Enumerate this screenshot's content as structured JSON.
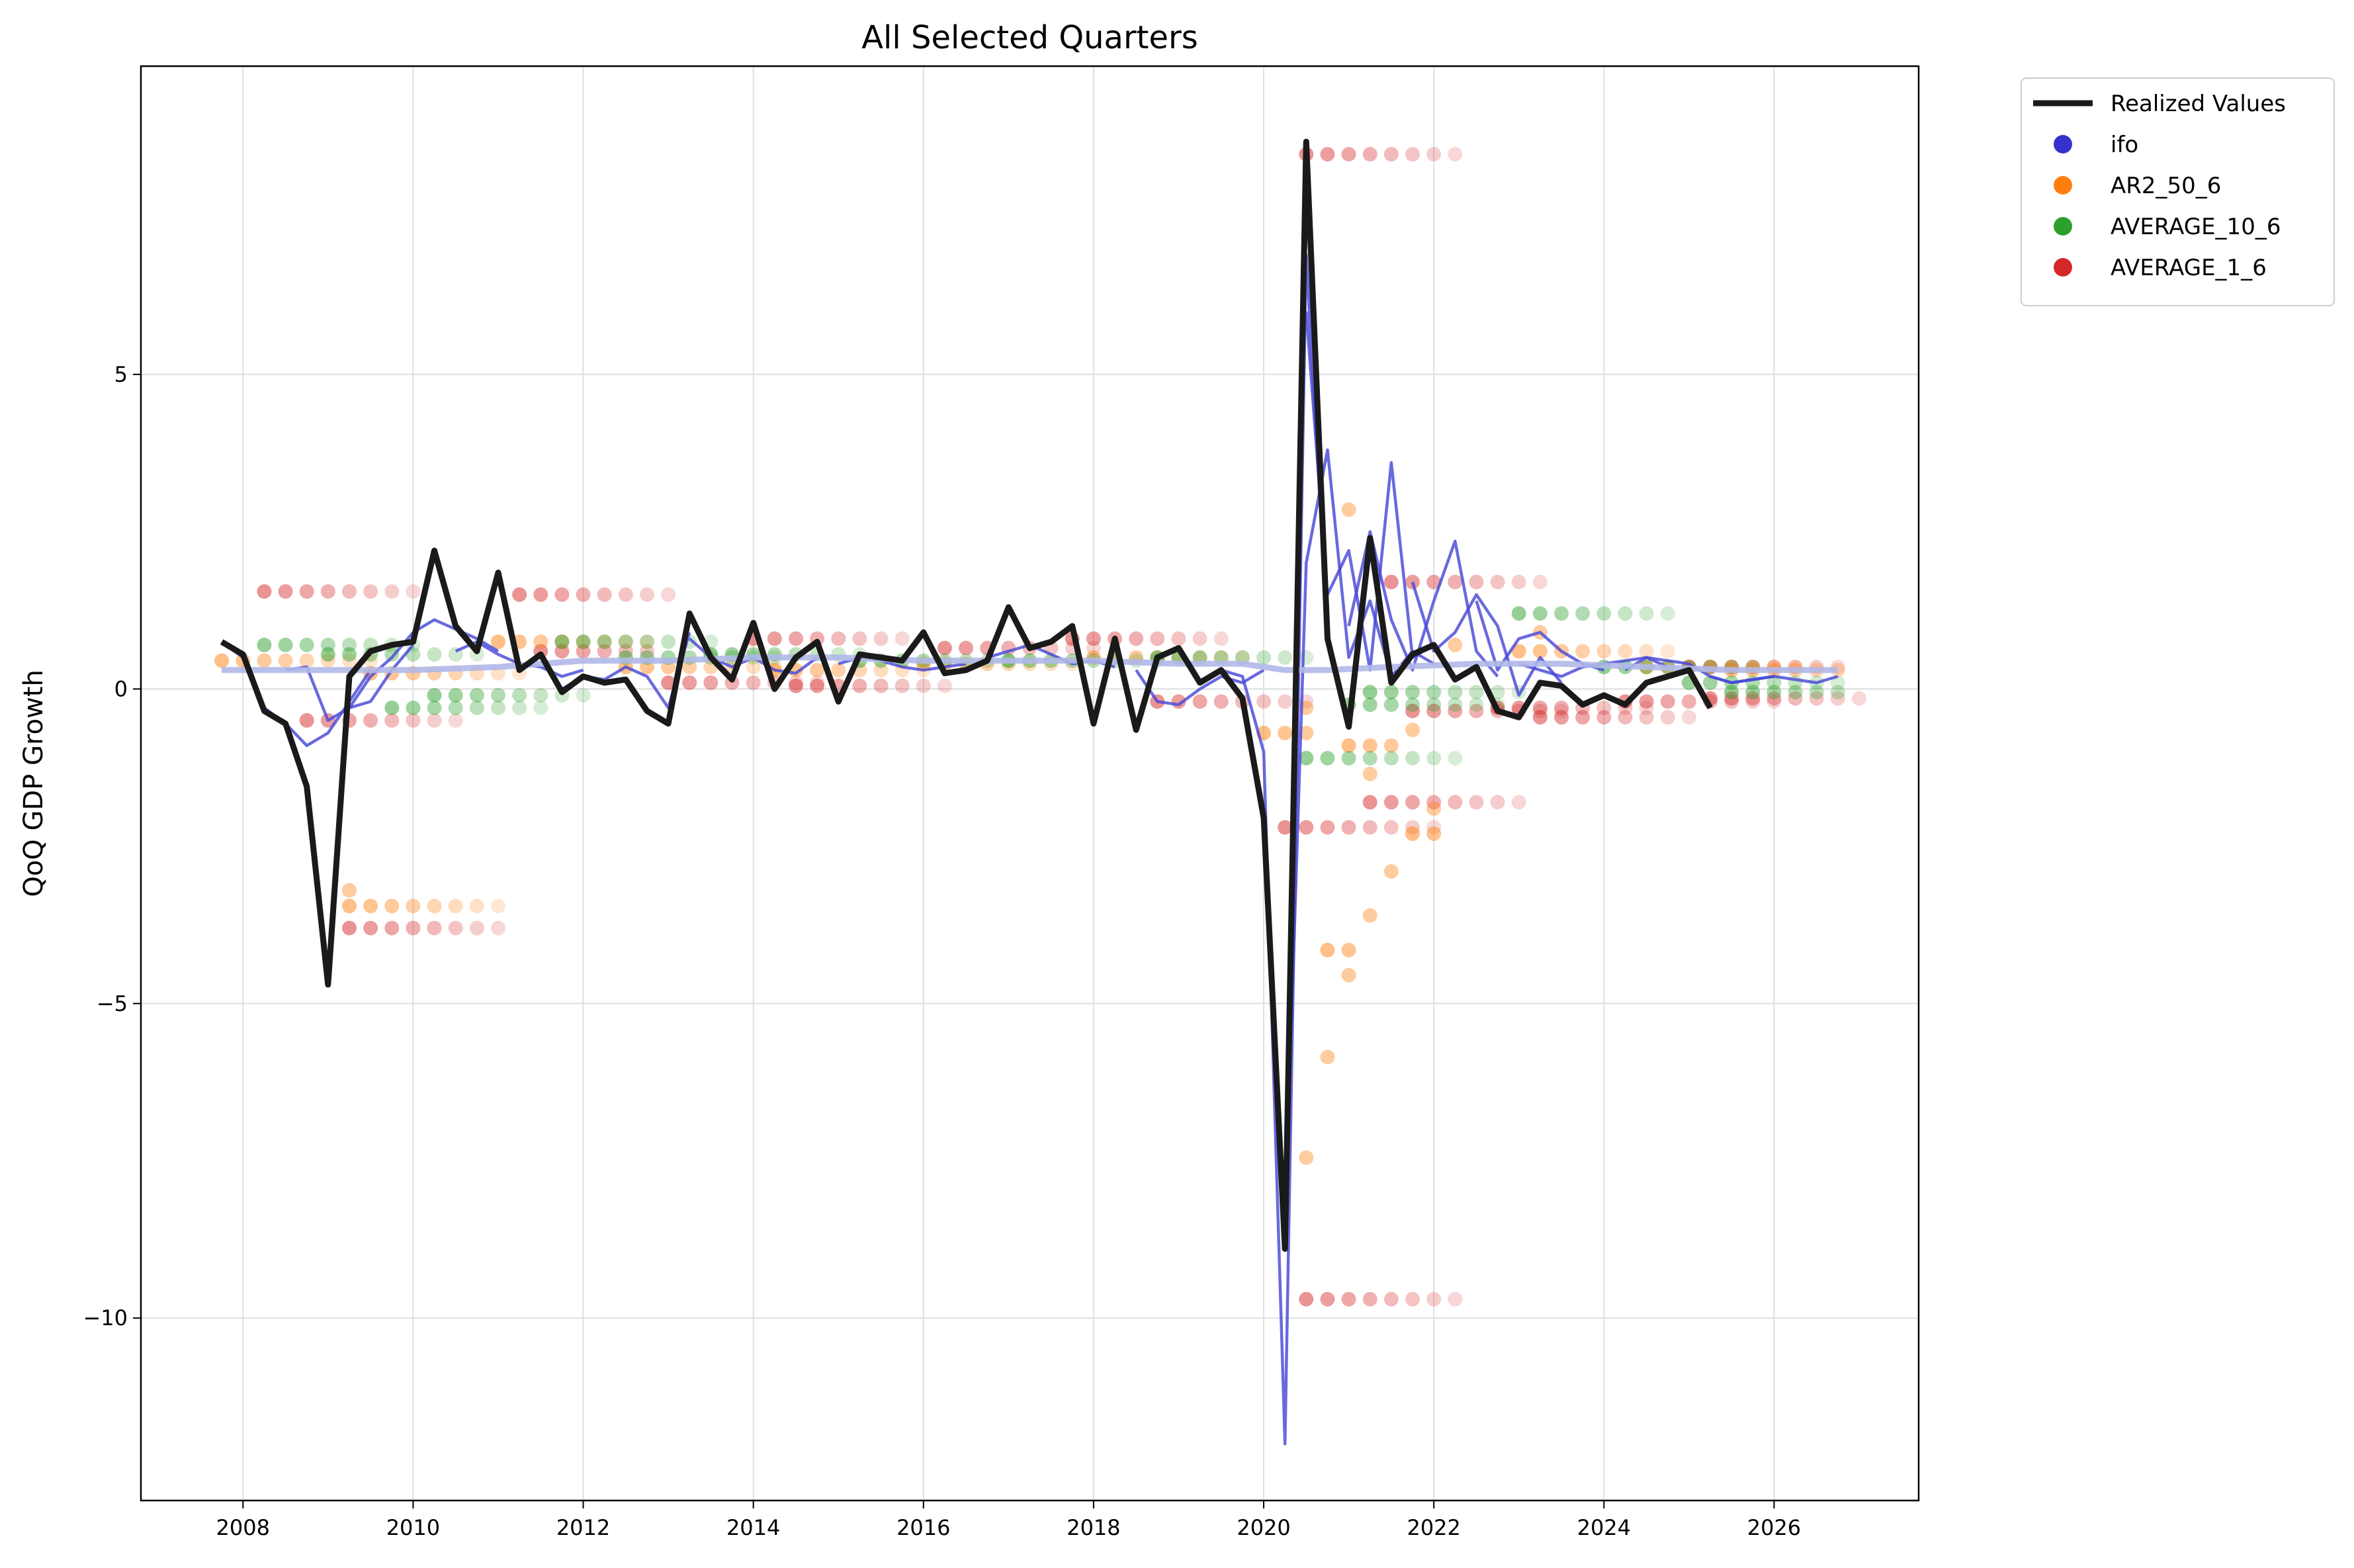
{
  "chart_data": {
    "type": "line",
    "title": "All Selected Quarters",
    "xlabel": "",
    "ylabel": "QoQ GDP Growth",
    "xlim": [
      2006.8,
      2027.7
    ],
    "ylim": [
      -12.9,
      9.9
    ],
    "x_ticks": [
      2008,
      2010,
      2012,
      2014,
      2016,
      2018,
      2020,
      2022,
      2024,
      2026
    ],
    "x_tick_labels": [
      "2008",
      "2010",
      "2012",
      "2014",
      "2016",
      "2018",
      "2020",
      "2022",
      "2024",
      "2026"
    ],
    "y_ticks": [
      5,
      0,
      -5,
      -10
    ],
    "y_tick_labels": [
      "5",
      "0",
      "−5",
      "−10"
    ],
    "grid": true,
    "legend_position": "outside-top-right",
    "legend": [
      {
        "label": "Realized Values",
        "kind": "line",
        "color": "#1a1a1a"
      },
      {
        "label": "ifo",
        "kind": "dot",
        "color": "#3333cc"
      },
      {
        "label": "AR2_50_6",
        "kind": "dot",
        "color": "#ff7f0e"
      },
      {
        "label": "AVERAGE_10_6",
        "kind": "dot",
        "color": "#2ca02c"
      },
      {
        "label": "AVERAGE_1_6",
        "kind": "dot",
        "color": "#d62728"
      }
    ],
    "realized": {
      "name": "Realized Values",
      "color": "#1a1a1a",
      "x": [
        2007.75,
        2008.0,
        2008.25,
        2008.5,
        2008.75,
        2009.0,
        2009.25,
        2009.5,
        2009.75,
        2010.0,
        2010.25,
        2010.5,
        2010.75,
        2011.0,
        2011.25,
        2011.5,
        2011.75,
        2012.0,
        2012.25,
        2012.5,
        2012.75,
        2013.0,
        2013.25,
        2013.5,
        2013.75,
        2014.0,
        2014.25,
        2014.5,
        2014.75,
        2015.0,
        2015.25,
        2015.5,
        2015.75,
        2016.0,
        2016.25,
        2016.5,
        2016.75,
        2017.0,
        2017.25,
        2017.5,
        2017.75,
        2018.0,
        2018.25,
        2018.5,
        2018.75,
        2019.0,
        2019.25,
        2019.5,
        2019.75,
        2020.0,
        2020.25,
        2020.5,
        2020.75,
        2021.0,
        2021.25,
        2021.5,
        2021.75,
        2022.0,
        2022.25,
        2022.5,
        2022.75,
        2023.0,
        2023.25,
        2023.5,
        2023.75,
        2024.0,
        2024.25,
        2024.5,
        2024.75,
        2025.0,
        2025.25
      ],
      "y": [
        0.75,
        0.55,
        -0.35,
        -0.55,
        -1.55,
        -4.7,
        0.2,
        0.6,
        0.7,
        0.75,
        2.2,
        1.0,
        0.6,
        1.85,
        0.3,
        0.55,
        -0.05,
        0.2,
        0.1,
        0.15,
        -0.35,
        -0.55,
        1.2,
        0.5,
        0.15,
        1.05,
        0.0,
        0.5,
        0.75,
        -0.2,
        0.55,
        0.5,
        0.45,
        0.9,
        0.25,
        0.3,
        0.45,
        1.3,
        0.65,
        0.75,
        1.0,
        -0.55,
        0.8,
        -0.65,
        0.5,
        0.65,
        0.1,
        0.3,
        -0.15,
        -2.05,
        -8.9,
        8.7,
        0.8,
        -0.6,
        2.4,
        0.1,
        0.55,
        0.7,
        0.15,
        0.35,
        -0.35,
        -0.45,
        0.1,
        0.05,
        -0.25,
        -0.1,
        -0.25,
        0.1,
        0.2,
        0.3,
        -0.3
      ]
    },
    "ifo_paths": [
      {
        "x": [
          2007.75,
          2008.0,
          2008.25,
          2008.5,
          2008.75,
          2009.0,
          2009.25,
          2009.5
        ],
        "y": [
          0.75,
          0.5,
          -0.3,
          -0.55,
          -0.9,
          -0.7,
          -0.2,
          0.3
        ]
      },
      {
        "x": [
          2008.5,
          2008.75,
          2009.0,
          2009.25,
          2009.5,
          2009.75,
          2010.0
        ],
        "y": [
          0.3,
          0.35,
          -0.5,
          -0.3,
          -0.2,
          0.3,
          0.7
        ]
      },
      {
        "x": [
          2009.25,
          2009.5,
          2009.75,
          2010.0,
          2010.25,
          2010.5,
          2010.75,
          2011.0
        ],
        "y": [
          -0.3,
          0.2,
          0.5,
          0.9,
          1.1,
          0.95,
          0.8,
          0.6
        ]
      },
      {
        "x": [
          2010.5,
          2010.75,
          2011.0,
          2011.25,
          2011.5,
          2011.75,
          2012.0
        ],
        "y": [
          0.6,
          0.75,
          0.55,
          0.4,
          0.35,
          0.2,
          0.3
        ]
      },
      {
        "x": [
          2011.75,
          2012.0,
          2012.25,
          2012.5,
          2012.75,
          2013.0,
          2013.25
        ],
        "y": [
          0.0,
          0.2,
          0.15,
          0.35,
          0.2,
          -0.3,
          0.9
        ]
      },
      {
        "x": [
          2013.25,
          2013.5,
          2013.75,
          2014.0,
          2014.25,
          2014.5,
          2014.75
        ],
        "y": [
          0.8,
          0.5,
          0.35,
          0.5,
          0.3,
          0.25,
          0.5
        ]
      },
      {
        "x": [
          2015.0,
          2015.25,
          2015.5,
          2015.75,
          2016.0,
          2016.25,
          2016.5
        ],
        "y": [
          0.4,
          0.5,
          0.45,
          0.35,
          0.3,
          0.35,
          0.4
        ]
      },
      {
        "x": [
          2016.75,
          2017.0,
          2017.25,
          2017.5,
          2017.75,
          2018.0,
          2018.25
        ],
        "y": [
          0.5,
          0.6,
          0.7,
          0.55,
          0.4,
          0.45,
          0.35
        ]
      },
      {
        "x": [
          2018.5,
          2018.75,
          2019.0,
          2019.25,
          2019.5,
          2019.75,
          2020.0
        ],
        "y": [
          0.3,
          -0.2,
          -0.25,
          0.0,
          0.2,
          0.1,
          0.3
        ]
      },
      {
        "x": [
          2019.5,
          2019.75,
          2020.0,
          2020.25,
          2020.5,
          2020.75,
          2021.0,
          2021.25
        ],
        "y": [
          0.3,
          0.2,
          -1.0,
          -12.0,
          6.9,
          0.8,
          -0.6,
          2.3
        ]
      },
      {
        "x": [
          2020.25,
          2020.5,
          2020.75,
          2021.0,
          2021.25,
          2021.5,
          2021.75,
          2022.0
        ],
        "y": [
          -8.5,
          2.0,
          3.8,
          0.5,
          1.4,
          0.2,
          0.6,
          0.4
        ]
      },
      {
        "x": [
          2020.5,
          2020.75,
          2021.0,
          2021.25,
          2021.5,
          2021.75,
          2022.0
        ],
        "y": [
          6.0,
          1.5,
          2.2,
          0.3,
          3.6,
          0.5,
          0.7
        ]
      },
      {
        "x": [
          2021.0,
          2021.25,
          2021.5,
          2021.75,
          2022.0,
          2022.25,
          2022.5,
          2022.75
        ],
        "y": [
          1.0,
          2.5,
          1.1,
          0.3,
          1.4,
          2.35,
          0.6,
          0.2
        ]
      },
      {
        "x": [
          2021.75,
          2022.0,
          2022.25,
          2022.5,
          2022.75,
          2023.0,
          2023.25,
          2023.5
        ],
        "y": [
          1.7,
          0.6,
          0.9,
          1.5,
          1.0,
          -0.1,
          0.5,
          0.1
        ]
      },
      {
        "x": [
          2022.5,
          2022.75,
          2023.0,
          2023.25,
          2023.5,
          2023.75,
          2024.0
        ],
        "y": [
          1.4,
          0.3,
          0.8,
          0.9,
          0.6,
          0.4,
          0.3
        ]
      },
      {
        "x": [
          2023.0,
          2023.25,
          2023.5,
          2023.75,
          2024.0,
          2024.25,
          2024.5,
          2024.75
        ],
        "y": [
          0.4,
          0.3,
          0.2,
          0.35,
          0.4,
          0.45,
          0.5,
          0.35
        ]
      },
      {
        "x": [
          2024.25,
          2024.5,
          2024.75,
          2025.0,
          2025.25,
          2025.5,
          2025.75,
          2026.0
        ],
        "y": [
          0.3,
          0.5,
          0.45,
          0.4,
          0.2,
          0.1,
          0.15,
          0.2
        ]
      },
      {
        "x": [
          2025.25,
          2025.5,
          2025.75,
          2026.0,
          2026.25,
          2026.5,
          2026.75
        ],
        "y": [
          0.2,
          0.1,
          0.15,
          0.2,
          0.15,
          0.1,
          0.2
        ]
      }
    ],
    "ifo_trend": {
      "x": [
        2007.75,
        2009.0,
        2010.0,
        2011.0,
        2012.0,
        2013.0,
        2014.0,
        2015.0,
        2016.0,
        2017.0,
        2018.0,
        2019.0,
        2019.75,
        2020.25,
        2020.75,
        2021.5,
        2022.5,
        2023.5,
        2024.5,
        2025.5,
        2026.75
      ],
      "y": [
        0.3,
        0.3,
        0.3,
        0.35,
        0.45,
        0.45,
        0.5,
        0.5,
        0.45,
        0.45,
        0.45,
        0.4,
        0.4,
        0.3,
        0.3,
        0.35,
        0.4,
        0.4,
        0.35,
        0.3,
        0.3
      ]
    },
    "dot_series": [
      {
        "name": "AVERAGE_1_6",
        "color": "#d62728",
        "runs": [
          {
            "x0": 2008.25,
            "y": 1.55,
            "n": 8
          },
          {
            "x0": 2008.75,
            "y": -0.5,
            "n": 8
          },
          {
            "x0": 2009.25,
            "y": -3.8,
            "n": 8
          },
          {
            "x0": 2011.25,
            "y": 1.5,
            "n": 8
          },
          {
            "x0": 2011.5,
            "y": 0.6,
            "n": 6
          },
          {
            "x0": 2013.0,
            "y": 0.1,
            "n": 8
          },
          {
            "x0": 2014.0,
            "y": 0.8,
            "n": 8
          },
          {
            "x0": 2014.5,
            "y": 0.05,
            "n": 8
          },
          {
            "x0": 2016.25,
            "y": 0.65,
            "n": 8
          },
          {
            "x0": 2017.75,
            "y": 0.8,
            "n": 8
          },
          {
            "x0": 2018.75,
            "y": -0.2,
            "n": 8
          },
          {
            "x0": 2020.5,
            "y": 8.5,
            "n": 8
          },
          {
            "x0": 2020.25,
            "y": -2.2,
            "n": 8
          },
          {
            "x0": 2020.5,
            "y": -9.7,
            "n": 8
          },
          {
            "x0": 2021.25,
            "y": -1.8,
            "n": 8
          },
          {
            "x0": 2021.5,
            "y": 1.7,
            "n": 8
          },
          {
            "x0": 2021.75,
            "y": -0.35,
            "n": 8
          },
          {
            "x0": 2022.75,
            "y": -0.3,
            "n": 8
          },
          {
            "x0": 2023.25,
            "y": -0.45,
            "n": 8
          },
          {
            "x0": 2024.25,
            "y": -0.2,
            "n": 8
          },
          {
            "x0": 2025.0,
            "y": 0.35,
            "n": 8
          },
          {
            "x0": 2025.25,
            "y": -0.15,
            "n": 8
          }
        ]
      },
      {
        "name": "AR2_50_6",
        "color": "#ff7f0e",
        "runs": [
          {
            "x0": 2007.75,
            "y": 0.45,
            "n": 8
          },
          {
            "x0": 2009.25,
            "y": -3.45,
            "n": 8
          },
          {
            "x0": 2009.5,
            "y": 0.25,
            "n": 8
          },
          {
            "x0": 2011.0,
            "y": 0.75,
            "n": 8
          },
          {
            "x0": 2012.5,
            "y": 0.35,
            "n": 8
          },
          {
            "x0": 2014.25,
            "y": 0.3,
            "n": 8
          },
          {
            "x0": 2016.0,
            "y": 0.4,
            "n": 8
          },
          {
            "x0": 2018.0,
            "y": 0.5,
            "n": 8
          },
          {
            "x0": 2020.0,
            "y": -0.7,
            "n": 3
          },
          {
            "x0": 2020.75,
            "y": -4.15,
            "n": 2
          },
          {
            "x0": 2021.0,
            "y": -0.9,
            "n": 3
          },
          {
            "x0": 2021.75,
            "y": -2.3,
            "n": 2
          },
          {
            "x0": 2023.0,
            "y": 0.6,
            "n": 8
          },
          {
            "x0": 2024.5,
            "y": 0.35,
            "n": 8
          },
          {
            "x0": 2025.5,
            "y": 0.3,
            "n": 6
          }
        ],
        "points": [
          {
            "x": 2009.25,
            "y": -3.2
          },
          {
            "x": 2020.5,
            "y": -7.45
          },
          {
            "x": 2020.5,
            "y": -0.3
          },
          {
            "x": 2020.75,
            "y": -5.85
          },
          {
            "x": 2021.0,
            "y": 2.85
          },
          {
            "x": 2021.0,
            "y": -4.55
          },
          {
            "x": 2021.25,
            "y": -1.35
          },
          {
            "x": 2021.25,
            "y": -3.6
          },
          {
            "x": 2021.5,
            "y": -2.9
          },
          {
            "x": 2021.75,
            "y": -0.65
          },
          {
            "x": 2022.0,
            "y": -1.9
          },
          {
            "x": 2022.25,
            "y": 0.7
          },
          {
            "x": 2023.25,
            "y": 0.9
          }
        ]
      },
      {
        "name": "AVERAGE_10_6",
        "color": "#2ca02c",
        "runs": [
          {
            "x0": 2008.25,
            "y": 0.7,
            "n": 8
          },
          {
            "x0": 2009.0,
            "y": 0.55,
            "n": 8
          },
          {
            "x0": 2009.75,
            "y": -0.3,
            "n": 8
          },
          {
            "x0": 2010.25,
            "y": -0.1,
            "n": 8
          },
          {
            "x0": 2011.75,
            "y": 0.75,
            "n": 8
          },
          {
            "x0": 2012.5,
            "y": 0.5,
            "n": 8
          },
          {
            "x0": 2013.5,
            "y": 0.55,
            "n": 8
          },
          {
            "x0": 2015.25,
            "y": 0.45,
            "n": 8
          },
          {
            "x0": 2017.0,
            "y": 0.45,
            "n": 8
          },
          {
            "x0": 2018.75,
            "y": 0.5,
            "n": 8
          },
          {
            "x0": 2020.5,
            "y": -1.1,
            "n": 8
          },
          {
            "x0": 2021.0,
            "y": -0.25,
            "n": 8
          },
          {
            "x0": 2021.25,
            "y": -0.05,
            "n": 8
          },
          {
            "x0": 2023.0,
            "y": 1.2,
            "n": 8
          },
          {
            "x0": 2024.0,
            "y": 0.35,
            "n": 8
          },
          {
            "x0": 2025.0,
            "y": 0.1,
            "n": 8
          },
          {
            "x0": 2025.5,
            "y": -0.05,
            "n": 6
          }
        ]
      }
    ]
  }
}
